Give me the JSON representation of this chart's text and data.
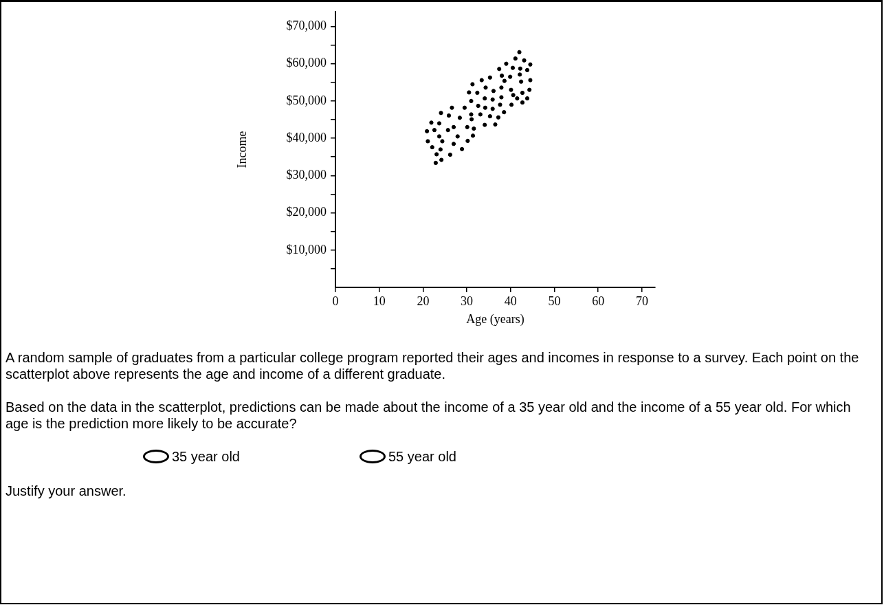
{
  "chart_data": {
    "type": "scatter",
    "xlabel": "Age (years)",
    "ylabel": "Income",
    "xlim": [
      0,
      73
    ],
    "xticks": [
      0,
      10,
      20,
      30,
      40,
      50,
      60,
      70
    ],
    "ylim": [
      0,
      74000
    ],
    "yticks": [
      {
        "value": 5000,
        "label": null
      },
      {
        "value": 10000,
        "label": "$10,000"
      },
      {
        "value": 15000,
        "label": null
      },
      {
        "value": 20000,
        "label": "$20,000"
      },
      {
        "value": 25000,
        "label": null
      },
      {
        "value": 30000,
        "label": "$30,000"
      },
      {
        "value": 35000,
        "label": null
      },
      {
        "value": 40000,
        "label": "$40,000"
      },
      {
        "value": 45000,
        "label": null
      },
      {
        "value": 50000,
        "label": "$50,000"
      },
      {
        "value": 55000,
        "label": null
      },
      {
        "value": 60000,
        "label": "$60,000"
      },
      {
        "value": 65000,
        "label": null
      },
      {
        "value": 70000,
        "label": "$70,000"
      }
    ],
    "grid": false,
    "legend": false,
    "marker": "circle",
    "series": [
      {
        "color": "#000000",
        "x": [
          42.0,
          39.0,
          41.1,
          43.1,
          44.5,
          37.4,
          40.5,
          42.2,
          43.8,
          42.1,
          38.0,
          39.9,
          35.3,
          33.4,
          31.3,
          38.6,
          42.4,
          44.5,
          34.3,
          36.1,
          37.9,
          30.5,
          32.4,
          40.1,
          44.3,
          42.7,
          40.6,
          34.1,
          35.9,
          31.0,
          37.9,
          41.5,
          43.8,
          42.7,
          40.2,
          29.5,
          26.6,
          32.6,
          34.2,
          35.9,
          37.6,
          24.1,
          25.9,
          31.0,
          33.1,
          35.3,
          37.2,
          38.5,
          28.4,
          31.1,
          21.9,
          23.7,
          27.0,
          30.1,
          31.6,
          34.1,
          36.5,
          20.9,
          22.6,
          25.7,
          23.7,
          27.9,
          31.4,
          21.1,
          24.4,
          30.2,
          27.0,
          22.1,
          24.0,
          28.9,
          23.1,
          26.2,
          24.2,
          22.9
        ],
        "values": [
          63100,
          60000,
          61400,
          60900,
          59800,
          58600,
          58900,
          58700,
          58300,
          57100,
          56800,
          56500,
          56300,
          55600,
          54500,
          55400,
          55200,
          55600,
          53600,
          52700,
          53600,
          52300,
          52200,
          53000,
          53000,
          52200,
          51600,
          50700,
          50400,
          50000,
          51000,
          50700,
          50700,
          49600,
          49000,
          48200,
          48200,
          48700,
          48200,
          47900,
          49000,
          46800,
          46100,
          46400,
          46400,
          45900,
          45600,
          47000,
          45500,
          45100,
          44200,
          44000,
          43000,
          43000,
          42600,
          43600,
          43700,
          41900,
          42200,
          42200,
          40500,
          40500,
          40700,
          39200,
          39200,
          39300,
          38500,
          37600,
          37000,
          37100,
          35700,
          35600,
          34200,
          33400
        ]
      }
    ],
    "annotations": [
      "A random sample of graduates from a particular college program reported their ages and incomes in response to a survey. Each point on the scatterplot above represents the age and income of a different graduate.",
      "Based on the data in the scatterplot, predictions can be made about the income of a 35 year old and the income of a 55 year old. For which age is the prediction more likely to be accurate?",
      "35 year old",
      "55 year old",
      "Justify your answer."
    ]
  }
}
